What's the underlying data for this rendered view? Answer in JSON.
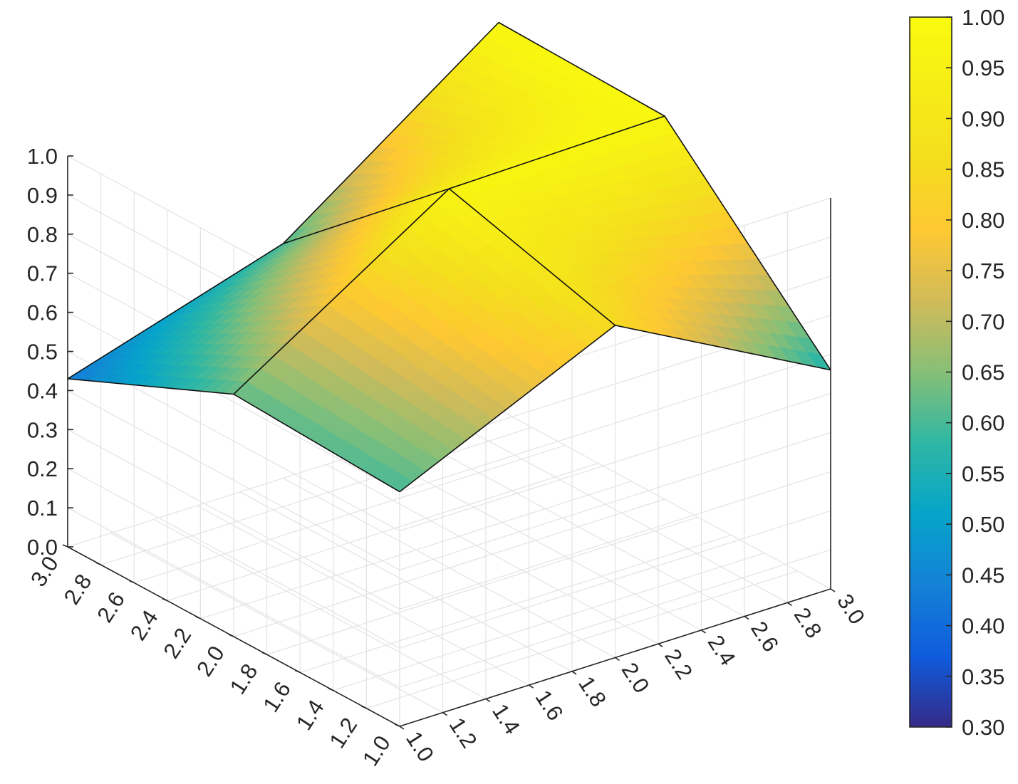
{
  "chart_data": {
    "type": "surface",
    "title": "",
    "xlabel": "",
    "ylabel": "",
    "zlabel": "",
    "x": [
      1,
      2,
      3
    ],
    "y": [
      1,
      2,
      3
    ],
    "z": [
      [
        0.6,
        0.85,
        0.56
      ],
      [
        0.62,
        0.97,
        0.98
      ],
      [
        0.43,
        0.6,
        0.99
      ]
    ],
    "xlim": [
      1,
      3
    ],
    "ylim": [
      1,
      3
    ],
    "zlim": [
      0,
      1
    ],
    "x_ticks": [
      "1.0",
      "1.2",
      "1.4",
      "1.6",
      "1.8",
      "2.0",
      "2.2",
      "2.4",
      "2.6",
      "2.8",
      "3.0"
    ],
    "y_ticks": [
      "1.0",
      "1.2",
      "1.4",
      "1.6",
      "1.8",
      "2.0",
      "2.2",
      "2.4",
      "2.6",
      "2.8",
      "3.0"
    ],
    "z_ticks": [
      "0.0",
      "0.1",
      "0.2",
      "0.3",
      "0.4",
      "0.5",
      "0.6",
      "0.7",
      "0.8",
      "0.9",
      "1.0"
    ],
    "colorbar": {
      "colormap": "parula",
      "range": [
        0.3,
        1.0
      ],
      "ticks": [
        "0.30",
        "0.35",
        "0.40",
        "0.45",
        "0.50",
        "0.55",
        "0.60",
        "0.65",
        "0.70",
        "0.75",
        "0.80",
        "0.85",
        "0.90",
        "0.95",
        "1.00"
      ]
    },
    "grid": true
  }
}
